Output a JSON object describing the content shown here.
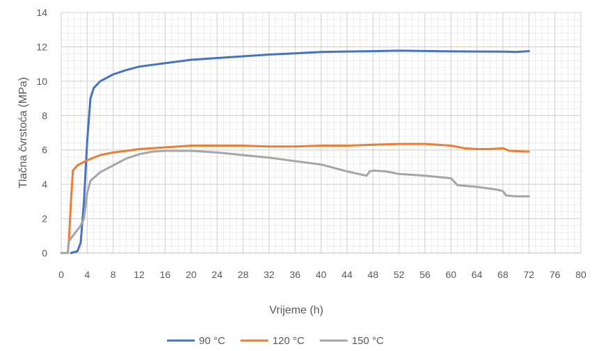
{
  "chart_data": {
    "type": "line",
    "title": "",
    "xlabel": "Vrijeme (h)",
    "ylabel": "Tlačna čvrstoća (MPa)",
    "xlim": [
      0,
      80
    ],
    "ylim": [
      0,
      14
    ],
    "xticks": [
      "0",
      "4",
      "8",
      "12",
      "16",
      "20",
      "24",
      "28",
      "32",
      "36",
      "40",
      "44",
      "48",
      "52",
      "56",
      "60",
      "64",
      "68",
      "72",
      "76",
      "80"
    ],
    "yticks": [
      "0",
      "2",
      "4",
      "6",
      "8",
      "10",
      "12",
      "14"
    ],
    "grid": true,
    "legend_position": "bottom",
    "series": [
      {
        "name": "90 °C",
        "color": "#4472C4",
        "points": [
          [
            1.5,
            0
          ],
          [
            2.5,
            0.1
          ],
          [
            3,
            0.6
          ],
          [
            3.5,
            3
          ],
          [
            4,
            6.5
          ],
          [
            4.5,
            9
          ],
          [
            5,
            9.6
          ],
          [
            6,
            10
          ],
          [
            8,
            10.4
          ],
          [
            10,
            10.65
          ],
          [
            12,
            10.85
          ],
          [
            16,
            11.05
          ],
          [
            20,
            11.25
          ],
          [
            24,
            11.35
          ],
          [
            28,
            11.45
          ],
          [
            32,
            11.55
          ],
          [
            36,
            11.62
          ],
          [
            40,
            11.7
          ],
          [
            44,
            11.73
          ],
          [
            48,
            11.75
          ],
          [
            52,
            11.78
          ],
          [
            56,
            11.76
          ],
          [
            60,
            11.74
          ],
          [
            64,
            11.73
          ],
          [
            68,
            11.72
          ],
          [
            70,
            11.7
          ],
          [
            72,
            11.75
          ]
        ]
      },
      {
        "name": "120 °C",
        "color": "#ED7D31",
        "points": [
          [
            1,
            0
          ],
          [
            1.2,
            0.8
          ],
          [
            1.5,
            3
          ],
          [
            1.8,
            4.8
          ],
          [
            2.5,
            5.1
          ],
          [
            4,
            5.4
          ],
          [
            6,
            5.7
          ],
          [
            8,
            5.85
          ],
          [
            10,
            5.95
          ],
          [
            12,
            6.05
          ],
          [
            16,
            6.15
          ],
          [
            20,
            6.25
          ],
          [
            24,
            6.25
          ],
          [
            28,
            6.25
          ],
          [
            32,
            6.2
          ],
          [
            36,
            6.2
          ],
          [
            40,
            6.25
          ],
          [
            44,
            6.25
          ],
          [
            48,
            6.3
          ],
          [
            52,
            6.35
          ],
          [
            56,
            6.35
          ],
          [
            58,
            6.3
          ],
          [
            60,
            6.25
          ],
          [
            62,
            6.1
          ],
          [
            64,
            6.05
          ],
          [
            66,
            6.05
          ],
          [
            68,
            6.1
          ],
          [
            69,
            5.95
          ],
          [
            72,
            5.9
          ]
        ]
      },
      {
        "name": "150 °C",
        "color": "#A5A5A5",
        "points": [
          [
            0,
            0
          ],
          [
            1,
            0
          ],
          [
            1.2,
            0.7
          ],
          [
            2,
            1.1
          ],
          [
            3,
            1.6
          ],
          [
            3.5,
            2
          ],
          [
            4,
            3.5
          ],
          [
            4.5,
            4.2
          ],
          [
            6,
            4.7
          ],
          [
            8,
            5.1
          ],
          [
            10,
            5.5
          ],
          [
            12,
            5.75
          ],
          [
            14,
            5.9
          ],
          [
            16,
            5.95
          ],
          [
            20,
            5.95
          ],
          [
            24,
            5.85
          ],
          [
            28,
            5.7
          ],
          [
            32,
            5.55
          ],
          [
            36,
            5.35
          ],
          [
            40,
            5.15
          ],
          [
            44,
            4.75
          ],
          [
            47,
            4.5
          ],
          [
            47.5,
            4.75
          ],
          [
            48,
            4.8
          ],
          [
            50,
            4.75
          ],
          [
            52,
            4.6
          ],
          [
            56,
            4.5
          ],
          [
            60,
            4.35
          ],
          [
            61,
            3.95
          ],
          [
            64,
            3.85
          ],
          [
            67,
            3.7
          ],
          [
            68,
            3.6
          ],
          [
            68.5,
            3.35
          ],
          [
            70,
            3.3
          ],
          [
            72,
            3.3
          ]
        ]
      }
    ]
  }
}
